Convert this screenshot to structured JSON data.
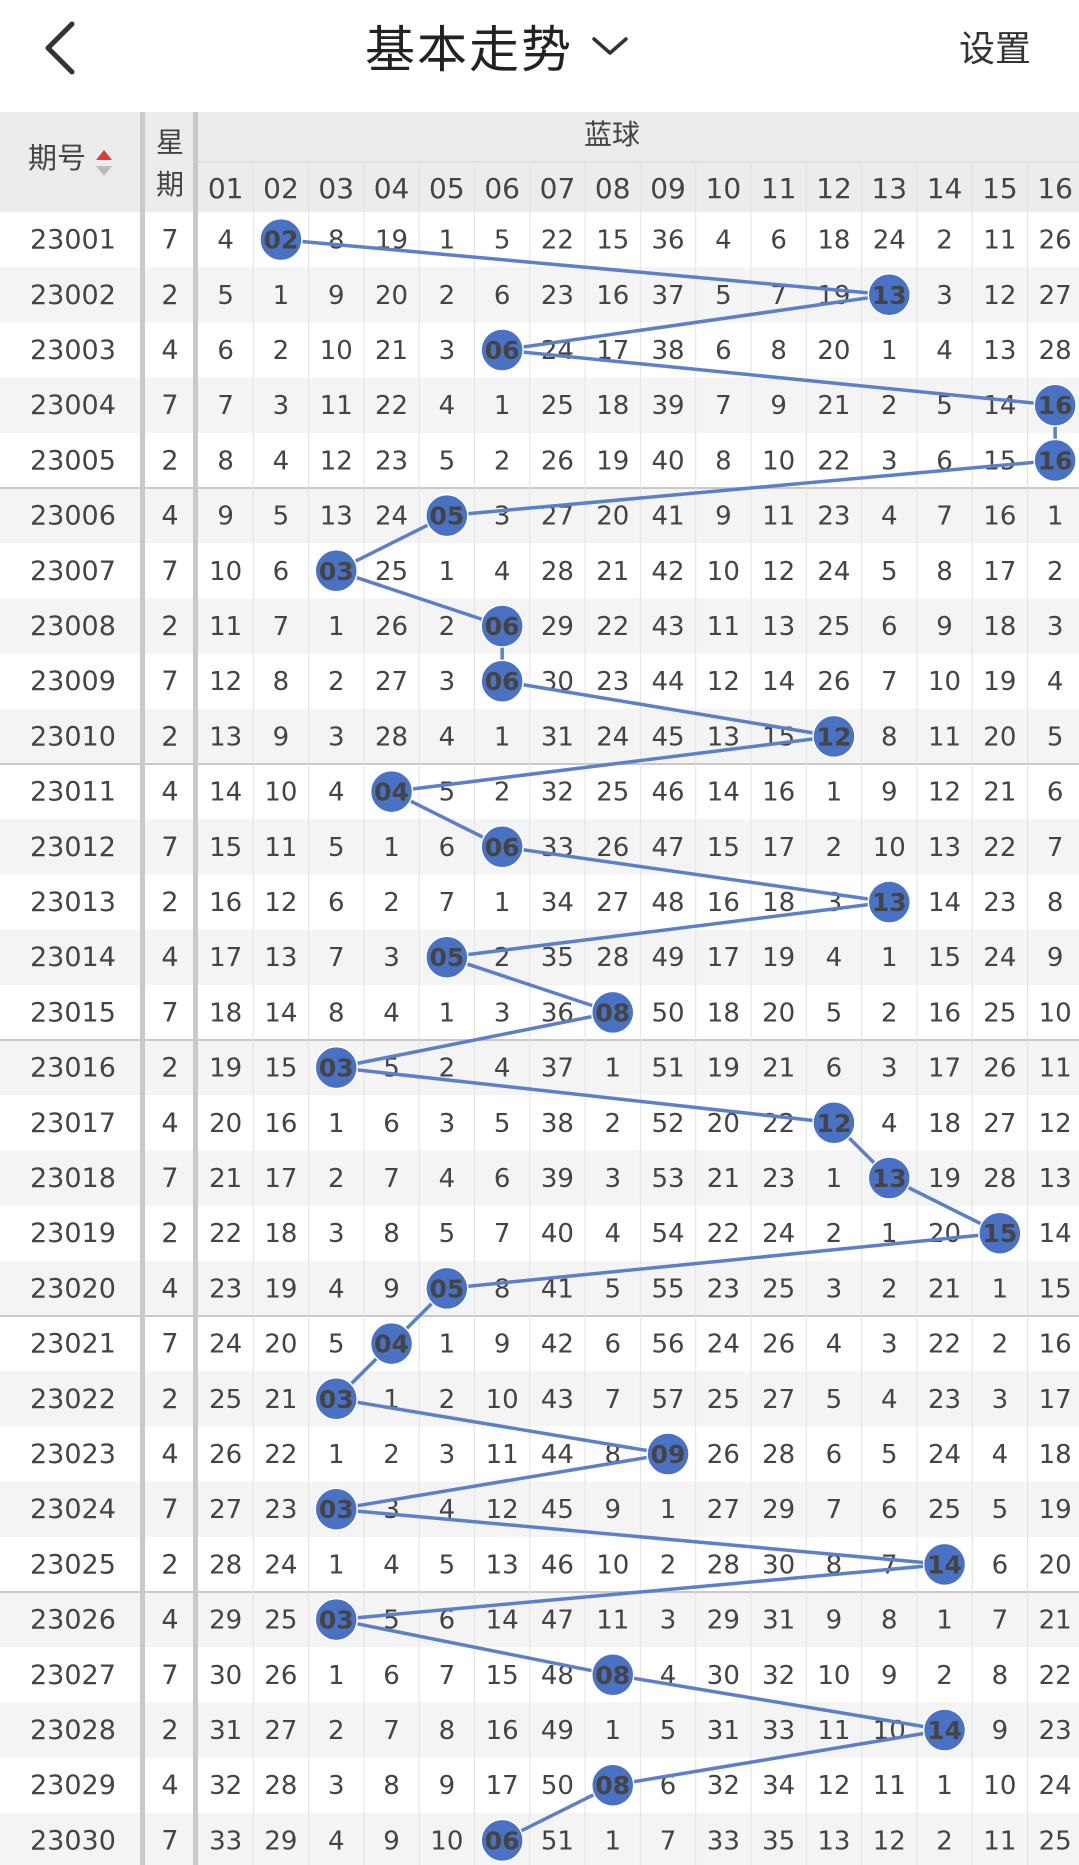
{
  "header": {
    "title": "基本走势",
    "settings_label": "设置"
  },
  "table": {
    "col_period_label": "期号",
    "col_weekday_label_1": "星",
    "col_weekday_label_2": "期",
    "group_label": "蓝球",
    "ball_columns": [
      "01",
      "02",
      "03",
      "04",
      "05",
      "06",
      "07",
      "08",
      "09",
      "10",
      "11",
      "12",
      "13",
      "14",
      "15",
      "16"
    ],
    "rows": [
      {
        "period": "23001",
        "weekday": "7",
        "blue": "02",
        "values": [
          4,
          2,
          8,
          19,
          1,
          5,
          22,
          15,
          36,
          4,
          6,
          18,
          24,
          2,
          11,
          26
        ]
      },
      {
        "period": "23002",
        "weekday": "2",
        "blue": "13",
        "values": [
          5,
          1,
          9,
          20,
          2,
          6,
          23,
          16,
          37,
          5,
          7,
          19,
          13,
          3,
          12,
          27
        ]
      },
      {
        "period": "23003",
        "weekday": "4",
        "blue": "06",
        "values": [
          6,
          2,
          10,
          21,
          3,
          6,
          24,
          17,
          38,
          6,
          8,
          20,
          1,
          4,
          13,
          28
        ]
      },
      {
        "period": "23004",
        "weekday": "7",
        "blue": "16",
        "values": [
          7,
          3,
          11,
          22,
          4,
          1,
          25,
          18,
          39,
          7,
          9,
          21,
          2,
          5,
          14,
          16
        ]
      },
      {
        "period": "23005",
        "weekday": "2",
        "blue": "16",
        "values": [
          8,
          4,
          12,
          23,
          5,
          2,
          26,
          19,
          40,
          8,
          10,
          22,
          3,
          6,
          15,
          16
        ]
      },
      {
        "period": "23006",
        "weekday": "4",
        "blue": "05",
        "values": [
          9,
          5,
          13,
          24,
          5,
          3,
          27,
          20,
          41,
          9,
          11,
          23,
          4,
          7,
          16,
          1
        ]
      },
      {
        "period": "23007",
        "weekday": "7",
        "blue": "03",
        "values": [
          10,
          6,
          3,
          25,
          1,
          4,
          28,
          21,
          42,
          10,
          12,
          24,
          5,
          8,
          17,
          2
        ]
      },
      {
        "period": "23008",
        "weekday": "2",
        "blue": "06",
        "values": [
          11,
          7,
          1,
          26,
          2,
          6,
          29,
          22,
          43,
          11,
          13,
          25,
          6,
          9,
          18,
          3
        ]
      },
      {
        "period": "23009",
        "weekday": "7",
        "blue": "06",
        "values": [
          12,
          8,
          2,
          27,
          3,
          6,
          30,
          23,
          44,
          12,
          14,
          26,
          7,
          10,
          19,
          4
        ]
      },
      {
        "period": "23010",
        "weekday": "2",
        "blue": "12",
        "values": [
          13,
          9,
          3,
          28,
          4,
          1,
          31,
          24,
          45,
          13,
          15,
          12,
          8,
          11,
          20,
          5
        ]
      },
      {
        "period": "23011",
        "weekday": "4",
        "blue": "04",
        "values": [
          14,
          10,
          4,
          4,
          5,
          2,
          32,
          25,
          46,
          14,
          16,
          1,
          9,
          12,
          21,
          6
        ]
      },
      {
        "period": "23012",
        "weekday": "7",
        "blue": "06",
        "values": [
          15,
          11,
          5,
          1,
          6,
          6,
          33,
          26,
          47,
          15,
          17,
          2,
          10,
          13,
          22,
          7
        ]
      },
      {
        "period": "23013",
        "weekday": "2",
        "blue": "13",
        "values": [
          16,
          12,
          6,
          2,
          7,
          1,
          34,
          27,
          48,
          16,
          18,
          3,
          13,
          14,
          23,
          8
        ]
      },
      {
        "period": "23014",
        "weekday": "4",
        "blue": "05",
        "values": [
          17,
          13,
          7,
          3,
          5,
          2,
          35,
          28,
          49,
          17,
          19,
          4,
          1,
          15,
          24,
          9
        ]
      },
      {
        "period": "23015",
        "weekday": "7",
        "blue": "08",
        "values": [
          18,
          14,
          8,
          4,
          1,
          3,
          36,
          8,
          50,
          18,
          20,
          5,
          2,
          16,
          25,
          10
        ]
      },
      {
        "period": "23016",
        "weekday": "2",
        "blue": "03",
        "values": [
          19,
          15,
          3,
          5,
          2,
          4,
          37,
          1,
          51,
          19,
          21,
          6,
          3,
          17,
          26,
          11
        ]
      },
      {
        "period": "23017",
        "weekday": "4",
        "blue": "12",
        "values": [
          20,
          16,
          1,
          6,
          3,
          5,
          38,
          2,
          52,
          20,
          22,
          12,
          4,
          18,
          27,
          12
        ]
      },
      {
        "period": "23018",
        "weekday": "7",
        "blue": "13",
        "values": [
          21,
          17,
          2,
          7,
          4,
          6,
          39,
          3,
          53,
          21,
          23,
          1,
          13,
          19,
          28,
          13
        ]
      },
      {
        "period": "23019",
        "weekday": "2",
        "blue": "15",
        "values": [
          22,
          18,
          3,
          8,
          5,
          7,
          40,
          4,
          54,
          22,
          24,
          2,
          1,
          20,
          15,
          14
        ]
      },
      {
        "period": "23020",
        "weekday": "4",
        "blue": "05",
        "values": [
          23,
          19,
          4,
          9,
          5,
          8,
          41,
          5,
          55,
          23,
          25,
          3,
          2,
          21,
          1,
          15
        ]
      },
      {
        "period": "23021",
        "weekday": "7",
        "blue": "04",
        "values": [
          24,
          20,
          5,
          4,
          1,
          9,
          42,
          6,
          56,
          24,
          26,
          4,
          3,
          22,
          2,
          16
        ]
      },
      {
        "period": "23022",
        "weekday": "2",
        "blue": "03",
        "values": [
          25,
          21,
          3,
          1,
          2,
          10,
          43,
          7,
          57,
          25,
          27,
          5,
          4,
          23,
          3,
          17
        ]
      },
      {
        "period": "23023",
        "weekday": "4",
        "blue": "09",
        "values": [
          26,
          22,
          1,
          2,
          3,
          11,
          44,
          8,
          9,
          26,
          28,
          6,
          5,
          24,
          4,
          18
        ]
      },
      {
        "period": "23024",
        "weekday": "7",
        "blue": "03",
        "values": [
          27,
          23,
          3,
          3,
          4,
          12,
          45,
          9,
          1,
          27,
          29,
          7,
          6,
          25,
          5,
          19
        ]
      },
      {
        "period": "23025",
        "weekday": "2",
        "blue": "14",
        "values": [
          28,
          24,
          1,
          4,
          5,
          13,
          46,
          10,
          2,
          28,
          30,
          8,
          7,
          14,
          6,
          20
        ]
      },
      {
        "period": "23026",
        "weekday": "4",
        "blue": "03",
        "values": [
          29,
          25,
          3,
          5,
          6,
          14,
          47,
          11,
          3,
          29,
          31,
          9,
          8,
          1,
          7,
          21
        ]
      },
      {
        "period": "23027",
        "weekday": "7",
        "blue": "08",
        "values": [
          30,
          26,
          1,
          6,
          7,
          15,
          48,
          8,
          4,
          30,
          32,
          10,
          9,
          2,
          8,
          22
        ]
      },
      {
        "period": "23028",
        "weekday": "2",
        "blue": "14",
        "values": [
          31,
          27,
          2,
          7,
          8,
          16,
          49,
          1,
          5,
          31,
          33,
          11,
          10,
          14,
          9,
          23
        ]
      },
      {
        "period": "23029",
        "weekday": "4",
        "blue": "08",
        "values": [
          32,
          28,
          3,
          8,
          9,
          17,
          50,
          8,
          6,
          32,
          34,
          12,
          11,
          1,
          10,
          24
        ]
      },
      {
        "period": "23030",
        "weekday": "7",
        "blue": "06",
        "values": [
          33,
          29,
          4,
          9,
          10,
          6,
          51,
          1,
          7,
          33,
          35,
          13,
          12,
          2,
          11,
          25
        ]
      }
    ]
  },
  "colors": {
    "ball": "#4a72c4",
    "line": "#5c7fc9",
    "header_bg": "#ececec",
    "row_alt_bg": "#f4f4f4",
    "sort_arrow": "#e53935"
  }
}
